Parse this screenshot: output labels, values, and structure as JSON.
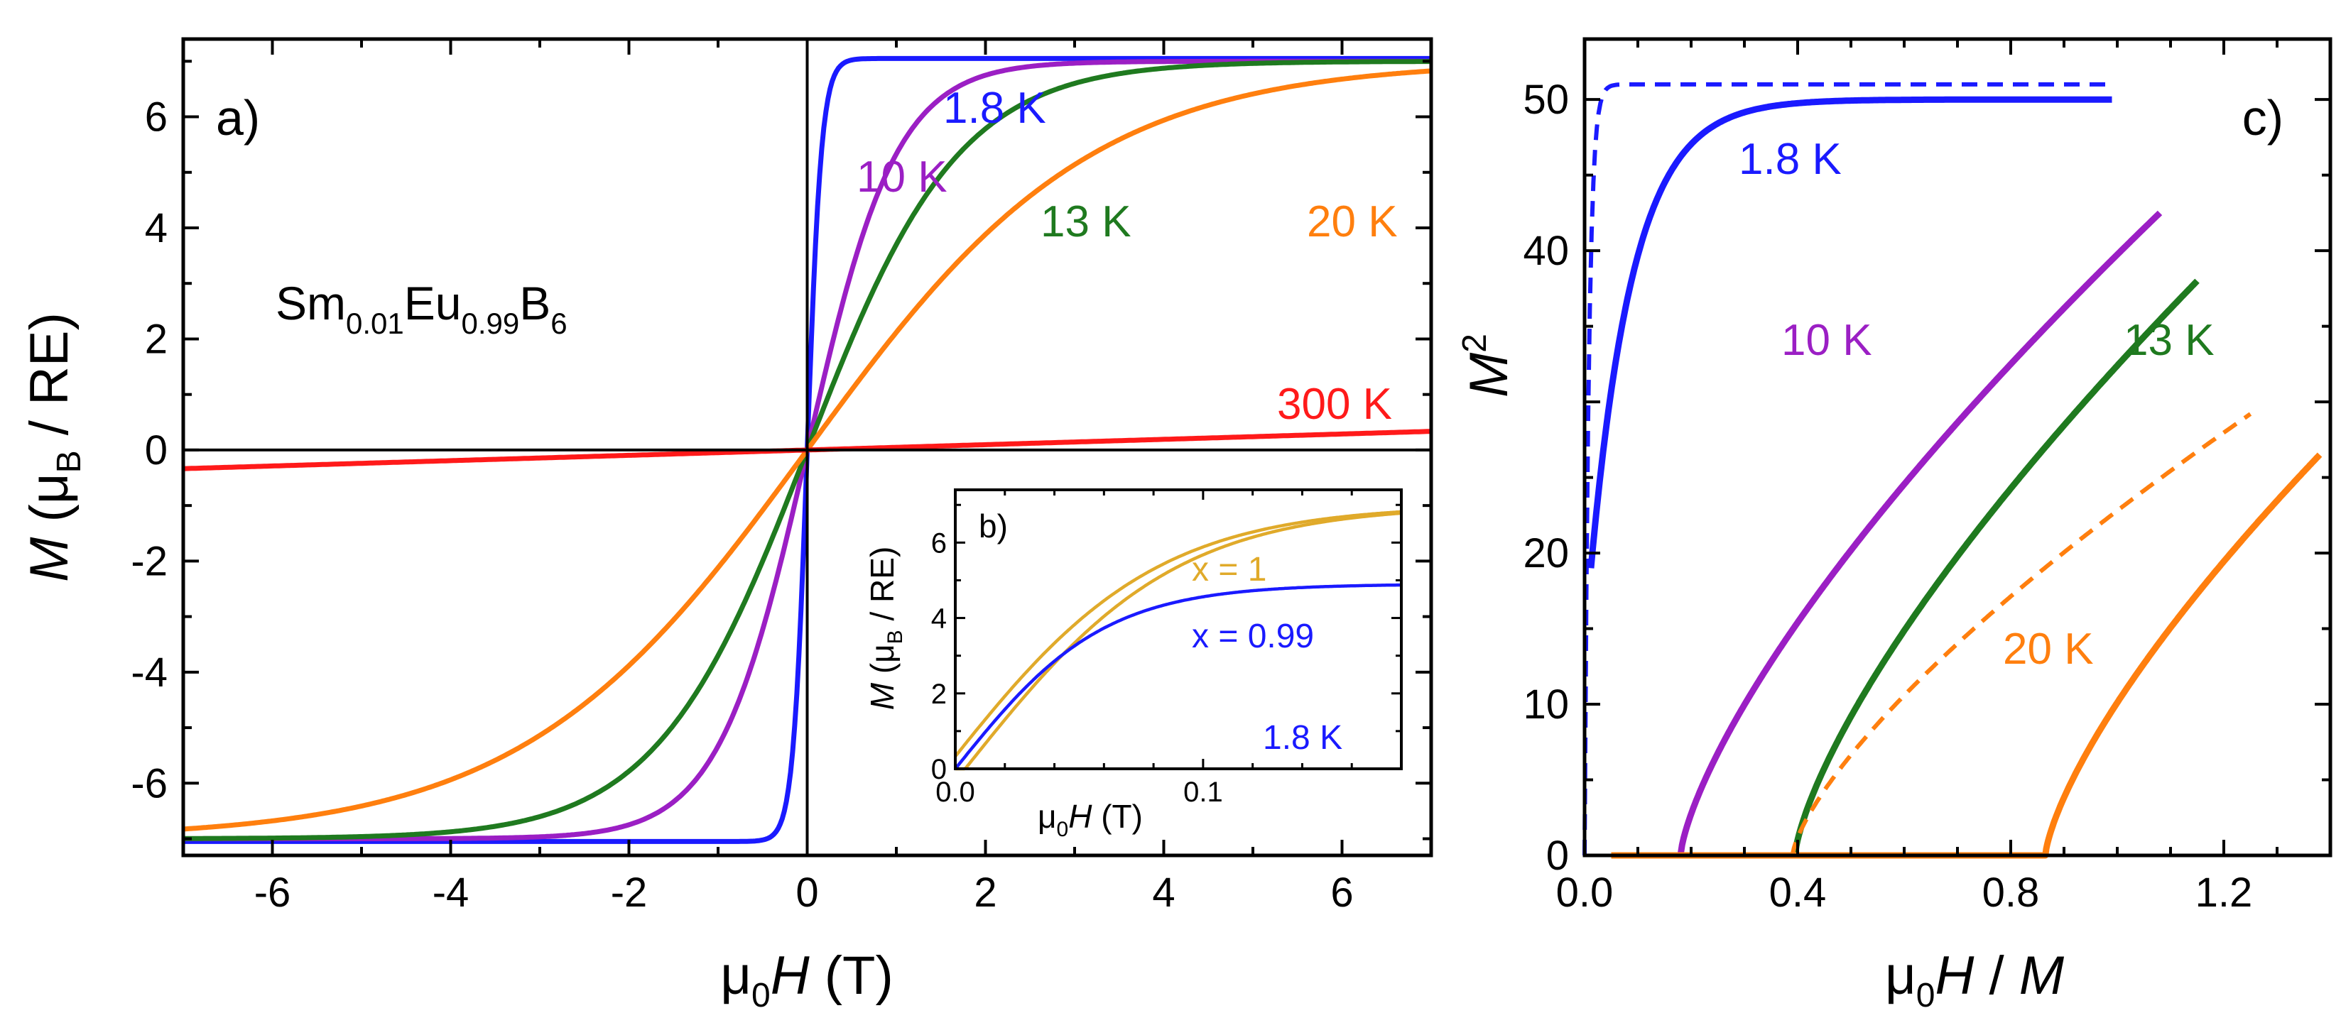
{
  "panel_a": {
    "label": "a)",
    "compound": {
      "base1": "Sm",
      "sub1": "0.01",
      "base2": "Eu",
      "sub2": "0.99",
      "base3": "B",
      "sub3": "6"
    },
    "xlabel": {
      "mu": "μ",
      "sub": "0",
      "var": "H",
      "unit": " (T)"
    },
    "ylabel": {
      "var": "M",
      "open": " (μ",
      "sub": "B",
      "rest": " / RE)"
    }
  },
  "panel_b": {
    "label": "b)",
    "xlabel": {
      "mu": "μ",
      "sub": "0",
      "var": "H",
      "unit": " (T)"
    },
    "ylabel": {
      "var": "M",
      "open": " (μ",
      "sub": "B",
      "rest": " / RE)"
    },
    "temp_label": "1.8 K"
  },
  "panel_c": {
    "label": "c)",
    "xlabel": {
      "mu": "μ",
      "sub": "0",
      "var": "H",
      "slash": " / ",
      "var2": "M"
    },
    "ylabel": {
      "var": "M",
      "sup": "2"
    }
  },
  "chart_data": [
    {
      "id": "a",
      "type": "line",
      "title": "",
      "xlabel": "μ0H (T)",
      "ylabel": "M (μB / RE)",
      "xlim": [
        -7,
        7
      ],
      "ylim": [
        -7.3,
        7.4
      ],
      "xticks": [
        "-6",
        "-4",
        "-2",
        "0",
        "2",
        "4",
        "6"
      ],
      "yticks": [
        "-6",
        "-4",
        "-2",
        "0",
        "2",
        "4",
        "6"
      ],
      "series": [
        {
          "name": "1.8 K",
          "color": "#1a1aff",
          "Ms": 7.05,
          "a": 0.16
        },
        {
          "name": "10 K",
          "color": "#9b1fc4",
          "Ms": 7.0,
          "a": 1.0
        },
        {
          "name": "13 K",
          "color": "#1f7a1f",
          "Ms": 7.0,
          "a": 1.7
        },
        {
          "name": "20 K",
          "color": "#ff7f0e",
          "Ms": 7.0,
          "a": 3.2
        },
        {
          "name": "300 K",
          "color": "#ff1a1a",
          "slope": 0.048
        }
      ]
    },
    {
      "id": "b",
      "type": "line",
      "xlabel": "μ0H (T)",
      "ylabel": "M (μB / RE)",
      "xlim": [
        0,
        0.18
      ],
      "ylim": [
        0,
        7.4
      ],
      "xticks": [
        "0.0",
        "0.1"
      ],
      "yticks": [
        "0",
        "2",
        "4",
        "6"
      ],
      "series": [
        {
          "name": "x = 1",
          "color": "#e0aa2a",
          "Ms": 7.0,
          "H0": 0.085
        },
        {
          "name": "x = 0.99",
          "color": "#1a1aff",
          "Ms": 4.9,
          "H0": 0.06
        }
      ]
    },
    {
      "id": "c",
      "type": "line",
      "xlabel": "μ0H / M",
      "ylabel": "M²",
      "xlim": [
        0,
        1.4
      ],
      "ylim": [
        0,
        54
      ],
      "xticks": [
        "0.0",
        "0.4",
        "0.8",
        "1.2"
      ],
      "yticks": [
        "0",
        "10",
        "20",
        "40",
        "50"
      ],
      "series": [
        {
          "name": "1.8 K",
          "color": "#1a1aff",
          "x0": 0.012,
          "xend": 0.99,
          "ymax": 50.0,
          "tau": 0.08
        },
        {
          "name": "1.8 K (dashed)",
          "color": "#1a1aff",
          "dashed": true,
          "x0": 0.0,
          "xend": 0.99,
          "ymax": 51.0,
          "tau": 0.008
        },
        {
          "name": "10 K",
          "color": "#9b1fc4",
          "xc": 0.18,
          "xend": 1.08,
          "ymax": 42.5
        },
        {
          "name": "13 K",
          "color": "#1f7a1f",
          "xc": 0.395,
          "xend": 1.15,
          "ymax": 38.0
        },
        {
          "name": "20 K (dashed)",
          "color": "#ff7f0e",
          "dashed": true,
          "xc": 0.39,
          "xend": 1.25,
          "ymax": 29.2
        },
        {
          "name": "20 K",
          "color": "#ff7f0e",
          "xc": 0.865,
          "xend": 1.38,
          "ymax": 26.5
        }
      ]
    }
  ]
}
